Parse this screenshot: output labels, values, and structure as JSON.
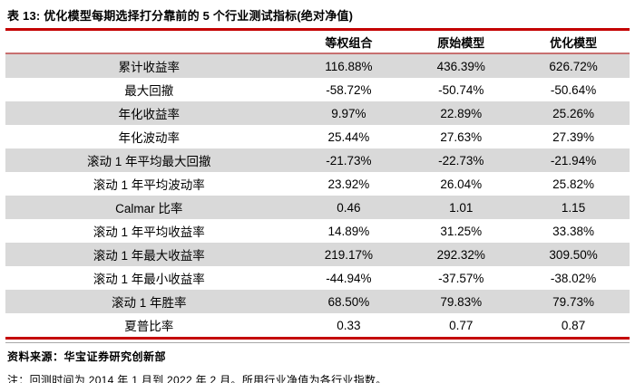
{
  "title": "表 13: 优化模型每期选择打分靠前的 5 个行业测试指标(绝对净值)",
  "table": {
    "columns": {
      "c1": "等权组合",
      "c2": "原始模型",
      "c3": "优化模型"
    },
    "rows": [
      {
        "label": "累计收益率",
        "values": [
          "116.88%",
          "436.39%",
          "626.72%"
        ]
      },
      {
        "label": "最大回撤",
        "values": [
          "-58.72%",
          "-50.74%",
          "-50.64%"
        ]
      },
      {
        "label": "年化收益率",
        "values": [
          "9.97%",
          "22.89%",
          "25.26%"
        ]
      },
      {
        "label": "年化波动率",
        "values": [
          "25.44%",
          "27.63%",
          "27.39%"
        ]
      },
      {
        "label": "滚动 1 年平均最大回撤",
        "values": [
          "-21.73%",
          "-22.73%",
          "-21.94%"
        ]
      },
      {
        "label": "滚动 1 年平均波动率",
        "values": [
          "23.92%",
          "26.04%",
          "25.82%"
        ]
      },
      {
        "label": "Calmar 比率",
        "values": [
          "0.46",
          "1.01",
          "1.15"
        ]
      },
      {
        "label": "滚动 1 年平均收益率",
        "values": [
          "14.89%",
          "31.25%",
          "33.38%"
        ]
      },
      {
        "label": "滚动 1 年最大收益率",
        "values": [
          "219.17%",
          "292.32%",
          "309.50%"
        ]
      },
      {
        "label": "滚动 1 年最小收益率",
        "values": [
          "-44.94%",
          "-37.57%",
          "-38.02%"
        ]
      },
      {
        "label": "滚动 1 年胜率",
        "values": [
          "68.50%",
          "79.83%",
          "79.73%"
        ]
      },
      {
        "label": "夏普比率",
        "values": [
          "0.33",
          "0.77",
          "0.87"
        ]
      }
    ]
  },
  "footer": {
    "source": "资料来源：华宝证券研究创新部",
    "note": "注：回测时间为 2014 年 1 月到 2022 年 2 月。所用行业净值为各行业指数。"
  },
  "colors": {
    "accent_red": "#c40000",
    "header_underline_red": "#c87070",
    "row_stripe_gray": "#d9d9d9"
  }
}
